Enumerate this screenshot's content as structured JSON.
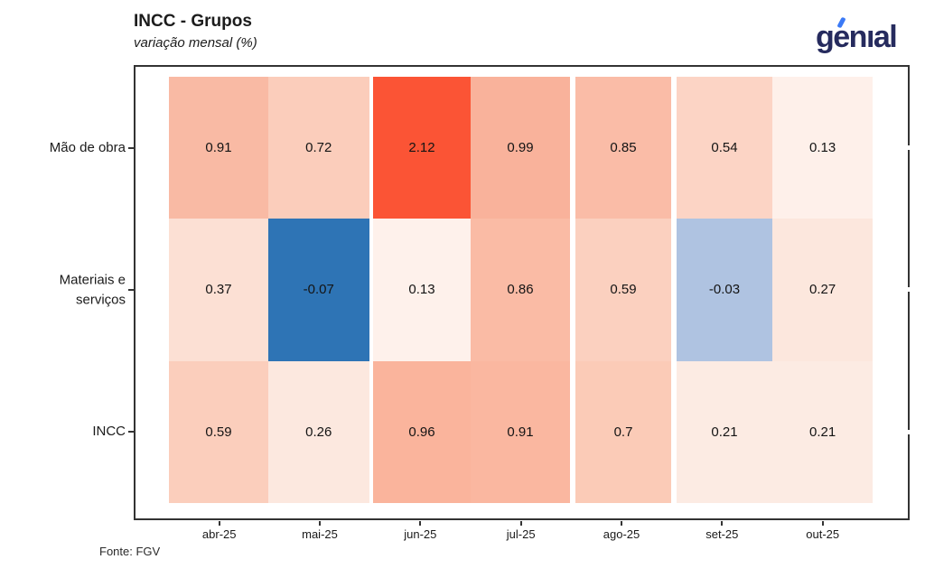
{
  "header": {
    "title": "INCC - Grupos",
    "subtitle": "variação mensal (%)",
    "logo_text": "genıal"
  },
  "footer": {
    "source": "Fonte: FGV"
  },
  "colors": {
    "logo_navy": "#262b5e",
    "logo_accent": "#3b7af6",
    "panel_border": "#333333",
    "negative_strong": "#2e74b5",
    "negative_light": "#afc3e1",
    "positive_strong": "#fb5435",
    "zero_white": "#fff7f2"
  },
  "chart_data": {
    "type": "heatmap",
    "title": "INCC - Grupos",
    "subtitle": "variação mensal (%)",
    "source": "Fonte: FGV",
    "x_categories": [
      "abr-25",
      "mai-25",
      "jun-25",
      "jul-25",
      "ago-25",
      "set-25",
      "out-25"
    ],
    "y_categories": [
      "Mão de obra",
      "Materiais e\nserviços",
      "INCC"
    ],
    "series": [
      {
        "name": "Mão de obra",
        "values": [
          0.91,
          0.72,
          2.12,
          0.99,
          0.85,
          0.54,
          0.13
        ]
      },
      {
        "name": "Materiais e serviços",
        "values": [
          0.37,
          -0.07,
          0.13,
          0.86,
          0.59,
          -0.03,
          0.27
        ]
      },
      {
        "name": "INCC",
        "values": [
          0.59,
          0.26,
          0.96,
          0.91,
          0.7,
          0.21,
          0.21
        ]
      }
    ],
    "value_labels": [
      [
        "0.91",
        "0.72",
        "2.12",
        "0.99",
        "0.85",
        "0.54",
        "0.13"
      ],
      [
        "0.37",
        "-0.07",
        "0.13",
        "0.86",
        "0.59",
        "-0.03",
        "0.27"
      ],
      [
        "0.59",
        "0.26",
        "0.96",
        "0.91",
        "0.7",
        "0.21",
        "0.21"
      ]
    ],
    "cell_colors": [
      [
        "#f9baa4",
        "#fbcdbb",
        "#fb5435",
        "#f9b29b",
        "#fabca7",
        "#fcd4c5",
        "#fef0ea"
      ],
      [
        "#fce0d4",
        "#2e74b5",
        "#fef1eb",
        "#fabba5",
        "#fbd0bf",
        "#afc3e1",
        "#fce7dd"
      ],
      [
        "#fbcebc",
        "#fce8df",
        "#fab49c",
        "#fab7a0",
        "#fbcbb7",
        "#fcebe3",
        "#fcebe3"
      ]
    ],
    "colorscale": {
      "negative_max_value": -0.07,
      "negative_max_color": "#2e74b5",
      "zero_color": "#fff7f2",
      "positive_max_value": 2.12,
      "positive_max_color": "#fb5435"
    },
    "legend": "none",
    "grid": "off"
  }
}
